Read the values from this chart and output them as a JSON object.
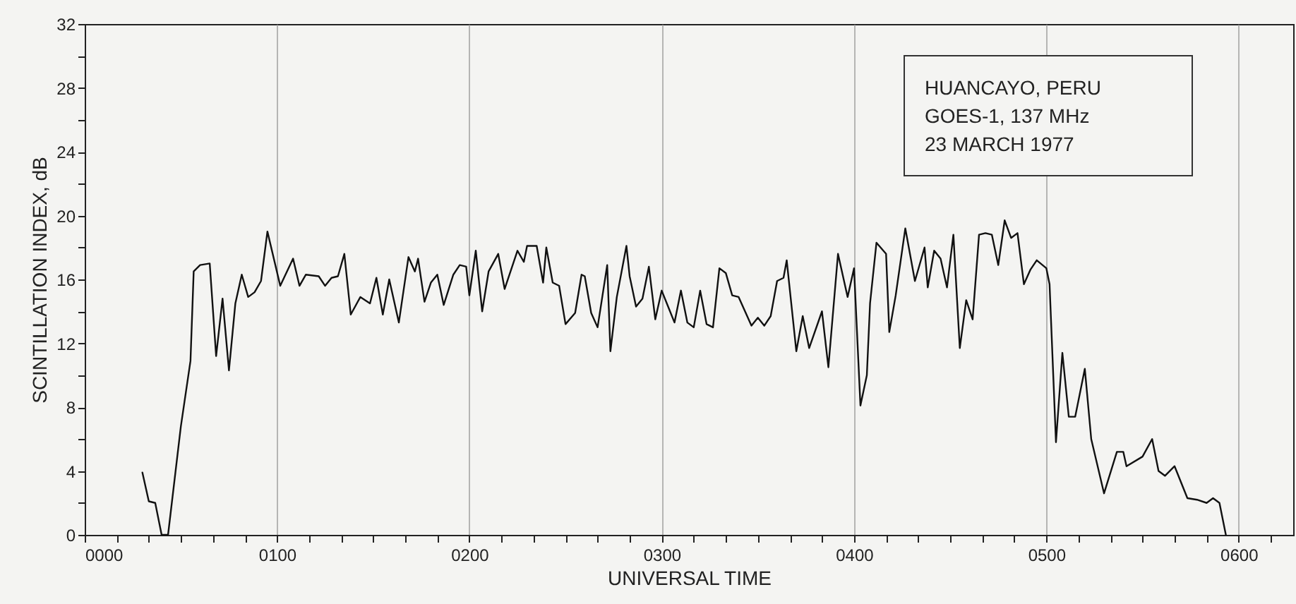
{
  "chart_data": {
    "type": "line",
    "xlabel": "UNIVERSAL TIME",
    "ylabel": "SCINTILLATION INDEX, dB",
    "annotations": [
      "HUANCAYO, PERU",
      "GOES-1, 137 MHz",
      "23 MARCH 1977"
    ],
    "xlim": [
      "1977-03-23T00:00",
      "1977-03-23T06:17"
    ],
    "ylim": [
      0,
      32
    ],
    "xticks": [
      {
        "value": "1977-03-23T00:00",
        "label": "0000"
      },
      {
        "value": "1977-03-23T00:10",
        "label": null
      },
      {
        "value": "1977-03-23T00:20",
        "label": null
      },
      {
        "value": "1977-03-23T00:30",
        "label": null
      },
      {
        "value": "1977-03-23T00:40",
        "label": null
      },
      {
        "value": "1977-03-23T00:50",
        "label": null
      },
      {
        "value": "1977-03-23T01:00",
        "label": "0100"
      },
      {
        "value": "1977-03-23T01:10",
        "label": null
      },
      {
        "value": "1977-03-23T01:20",
        "label": null
      },
      {
        "value": "1977-03-23T01:30",
        "label": null
      },
      {
        "value": "1977-03-23T01:40",
        "label": null
      },
      {
        "value": "1977-03-23T01:50",
        "label": null
      },
      {
        "value": "1977-03-23T02:00",
        "label": "0200"
      },
      {
        "value": "1977-03-23T02:10",
        "label": null
      },
      {
        "value": "1977-03-23T02:20",
        "label": null
      },
      {
        "value": "1977-03-23T02:30",
        "label": null
      },
      {
        "value": "1977-03-23T02:40",
        "label": null
      },
      {
        "value": "1977-03-23T02:50",
        "label": null
      },
      {
        "value": "1977-03-23T03:00",
        "label": "0300"
      },
      {
        "value": "1977-03-23T03:10",
        "label": null
      },
      {
        "value": "1977-03-23T03:20",
        "label": null
      },
      {
        "value": "1977-03-23T03:30",
        "label": null
      },
      {
        "value": "1977-03-23T03:40",
        "label": null
      },
      {
        "value": "1977-03-23T03:50",
        "label": null
      },
      {
        "value": "1977-03-23T04:00",
        "label": "0400"
      },
      {
        "value": "1977-03-23T04:10",
        "label": null
      },
      {
        "value": "1977-03-23T04:20",
        "label": null
      },
      {
        "value": "1977-03-23T04:30",
        "label": null
      },
      {
        "value": "1977-03-23T04:40",
        "label": null
      },
      {
        "value": "1977-03-23T04:50",
        "label": null
      },
      {
        "value": "1977-03-23T05:00",
        "label": "0500"
      },
      {
        "value": "1977-03-23T05:10",
        "label": null
      },
      {
        "value": "1977-03-23T05:20",
        "label": null
      },
      {
        "value": "1977-03-23T05:30",
        "label": null
      },
      {
        "value": "1977-03-23T05:40",
        "label": null
      },
      {
        "value": "1977-03-23T05:50",
        "label": null
      },
      {
        "value": "1977-03-23T06:00",
        "label": "0600"
      },
      {
        "value": "1977-03-23T06:10",
        "label": null
      }
    ],
    "yticks": [
      0,
      {
        "value": 2,
        "label": null
      },
      4,
      {
        "value": 6,
        "label": null
      },
      8,
      {
        "value": 10,
        "label": null
      },
      12,
      {
        "value": 14,
        "label": null
      },
      16,
      {
        "value": 18,
        "label": null
      },
      20,
      {
        "value": 22,
        "label": null
      },
      24,
      {
        "value": 26,
        "label": null
      },
      28,
      {
        "value": 30,
        "label": null
      },
      32
    ],
    "grid": "x",
    "marker": "none",
    "line_style": "solid",
    "series": [
      {
        "color": "#111111",
        "x": [
          "1977-03-23T00:18",
          "1977-03-23T00:20",
          "1977-03-23T00:22",
          "1977-03-23T00:24",
          "1977-03-23T00:26",
          "1977-03-23T00:30",
          "1977-03-23T00:33",
          "1977-03-23T00:34",
          "1977-03-23T00:36",
          "1977-03-23T00:39",
          "1977-03-23T00:41",
          "1977-03-23T00:43",
          "1977-03-23T00:45",
          "1977-03-23T00:47",
          "1977-03-23T00:49",
          "1977-03-23T00:51",
          "1977-03-23T00:53",
          "1977-03-23T00:55",
          "1977-03-23T00:57",
          "1977-03-23T01:01",
          "1977-03-23T01:05",
          "1977-03-23T01:07",
          "1977-03-23T01:09",
          "1977-03-23T01:13",
          "1977-03-23T01:15",
          "1977-03-23T01:17",
          "1977-03-23T01:19",
          "1977-03-23T01:21",
          "1977-03-23T01:23",
          "1977-03-23T01:26",
          "1977-03-23T01:29",
          "1977-03-23T01:31",
          "1977-03-23T01:33",
          "1977-03-23T01:35",
          "1977-03-23T01:38",
          "1977-03-23T01:41",
          "1977-03-23T01:43",
          "1977-03-23T01:44",
          "1977-03-23T01:46",
          "1977-03-23T01:48",
          "1977-03-23T01:50",
          "1977-03-23T01:52",
          "1977-03-23T01:55",
          "1977-03-23T01:57",
          "1977-03-23T01:59",
          "1977-03-23T02:00",
          "1977-03-23T02:02",
          "1977-03-23T02:04",
          "1977-03-23T02:06",
          "1977-03-23T02:09",
          "1977-03-23T02:11",
          "1977-03-23T02:15",
          "1977-03-23T02:17",
          "1977-03-23T02:18",
          "1977-03-23T02:21",
          "1977-03-23T02:23",
          "1977-03-23T02:24",
          "1977-03-23T02:26",
          "1977-03-23T02:28",
          "1977-03-23T02:30",
          "1977-03-23T02:33",
          "1977-03-23T02:35",
          "1977-03-23T02:36",
          "1977-03-23T02:38",
          "1977-03-23T02:40",
          "1977-03-23T02:43",
          "1977-03-23T02:44",
          "1977-03-23T02:46",
          "1977-03-23T02:49",
          "1977-03-23T02:50",
          "1977-03-23T02:52",
          "1977-03-23T02:54",
          "1977-03-23T02:56",
          "1977-03-23T02:58",
          "1977-03-23T03:00",
          "1977-03-23T03:02",
          "1977-03-23T03:04",
          "1977-03-23T03:06",
          "1977-03-23T03:08",
          "1977-03-23T03:10",
          "1977-03-23T03:12",
          "1977-03-23T03:14",
          "1977-03-23T03:16",
          "1977-03-23T03:18",
          "1977-03-23T03:20",
          "1977-03-23T03:22",
          "1977-03-23T03:24",
          "1977-03-23T03:28",
          "1977-03-23T03:30",
          "1977-03-23T03:32",
          "1977-03-23T03:34",
          "1977-03-23T03:36",
          "1977-03-23T03:38",
          "1977-03-23T03:39",
          "1977-03-23T03:42",
          "1977-03-23T03:44",
          "1977-03-23T03:46",
          "1977-03-23T03:50",
          "1977-03-23T03:52",
          "1977-03-23T03:55",
          "1977-03-23T03:58",
          "1977-03-23T04:00",
          "1977-03-23T04:02",
          "1977-03-23T04:04",
          "1977-03-23T04:05",
          "1977-03-23T04:07",
          "1977-03-23T04:10",
          "1977-03-23T04:11",
          "1977-03-23T04:13",
          "1977-03-23T04:16",
          "1977-03-23T04:19",
          "1977-03-23T04:22",
          "1977-03-23T04:23",
          "1977-03-23T04:25",
          "1977-03-23T04:27",
          "1977-03-23T04:29",
          "1977-03-23T04:31",
          "1977-03-23T04:33",
          "1977-03-23T04:35",
          "1977-03-23T04:37",
          "1977-03-23T04:39",
          "1977-03-23T04:41",
          "1977-03-23T04:43",
          "1977-03-23T04:45",
          "1977-03-23T04:47",
          "1977-03-23T04:49",
          "1977-03-23T04:51",
          "1977-03-23T04:53",
          "1977-03-23T04:55",
          "1977-03-23T04:57",
          "1977-03-23T05:00",
          "1977-03-23T05:01",
          "1977-03-23T05:03",
          "1977-03-23T05:05",
          "1977-03-23T05:07",
          "1977-03-23T05:09",
          "1977-03-23T05:12",
          "1977-03-23T05:14",
          "1977-03-23T05:18",
          "1977-03-23T05:22",
          "1977-03-23T05:24",
          "1977-03-23T05:25",
          "1977-03-23T05:30",
          "1977-03-23T05:33",
          "1977-03-23T05:35",
          "1977-03-23T05:37",
          "1977-03-23T05:40",
          "1977-03-23T05:44",
          "1977-03-23T05:47",
          "1977-03-23T05:50",
          "1977-03-23T05:52",
          "1977-03-23T05:54",
          "1977-03-23T05:56"
        ],
        "values": [
          3.9,
          2.1,
          2.0,
          0,
          0,
          6.8,
          10.9,
          16.5,
          16.9,
          17.0,
          11.2,
          14.8,
          10.3,
          14.5,
          16.3,
          14.9,
          15.2,
          15.9,
          19.0,
          15.6,
          17.3,
          15.6,
          16.3,
          16.2,
          15.6,
          16.1,
          16.2,
          17.6,
          13.8,
          14.9,
          14.5,
          16.1,
          13.8,
          16.0,
          13.3,
          17.4,
          16.5,
          17.3,
          14.6,
          15.8,
          16.3,
          14.4,
          16.3,
          16.9,
          16.8,
          15.0,
          17.8,
          14.0,
          16.5,
          17.6,
          15.4,
          17.8,
          17.1,
          18.1,
          18.1,
          15.8,
          18.0,
          15.8,
          15.6,
          13.2,
          13.9,
          16.3,
          16.2,
          13.9,
          13.0,
          16.9,
          11.5,
          14.9,
          18.1,
          16.2,
          14.3,
          14.8,
          16.8,
          13.5,
          15.3,
          14.3,
          13.3,
          15.3,
          13.3,
          13.0,
          15.3,
          13.2,
          13.0,
          16.7,
          16.4,
          15.0,
          14.9,
          13.1,
          13.6,
          13.1,
          13.7,
          15.9,
          16.1,
          17.2,
          11.5,
          13.7,
          11.7,
          14.0,
          10.5,
          17.6,
          14.9,
          16.7,
          8.1,
          10.0,
          14.5,
          18.3,
          17.6,
          12.7,
          15.0,
          19.2,
          15.9,
          18.0,
          15.5,
          17.8,
          17.3,
          15.5,
          18.8,
          11.7,
          14.7,
          13.5,
          18.8,
          18.9,
          18.8,
          16.9,
          19.7,
          18.6,
          18.9,
          15.7,
          16.6,
          17.2,
          16.7,
          15.7,
          5.8,
          11.4,
          7.4,
          7.4,
          10.4,
          6.0,
          2.6,
          5.2,
          5.2,
          4.3,
          4.9,
          6.0,
          4.0,
          3.7,
          4.3,
          2.3,
          2.2,
          2.0,
          2.3,
          2.0,
          0
        ]
      }
    ]
  }
}
